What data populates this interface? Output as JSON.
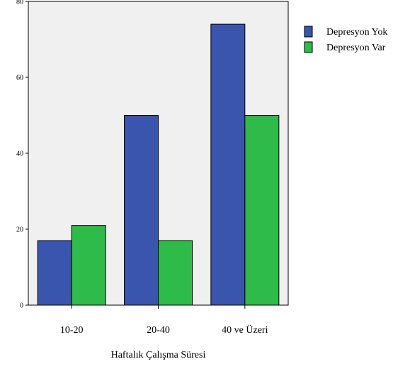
{
  "chart_data": {
    "type": "bar",
    "title": "",
    "xlabel": "Haftalık Çalışma Süresi",
    "ylabel": "",
    "categories": [
      "10-20",
      "20-40",
      "40 ve Üzeri"
    ],
    "series": [
      {
        "name": "Depresyon Yok",
        "values": [
          17,
          50,
          74
        ],
        "color": "#3a55ad"
      },
      {
        "name": "Depresyon Var",
        "values": [
          21,
          17,
          50
        ],
        "color": "#2fbb4a"
      }
    ],
    "ylim": [
      0,
      80
    ],
    "yticks": [
      0,
      20,
      40,
      60,
      80
    ],
    "ytick_labels": [
      "0",
      "20",
      "40",
      "60",
      "80"
    ],
    "grid": false,
    "legend_position": "right",
    "plot_background": "#f0f0f0",
    "bar_outline_color": "#000000"
  }
}
